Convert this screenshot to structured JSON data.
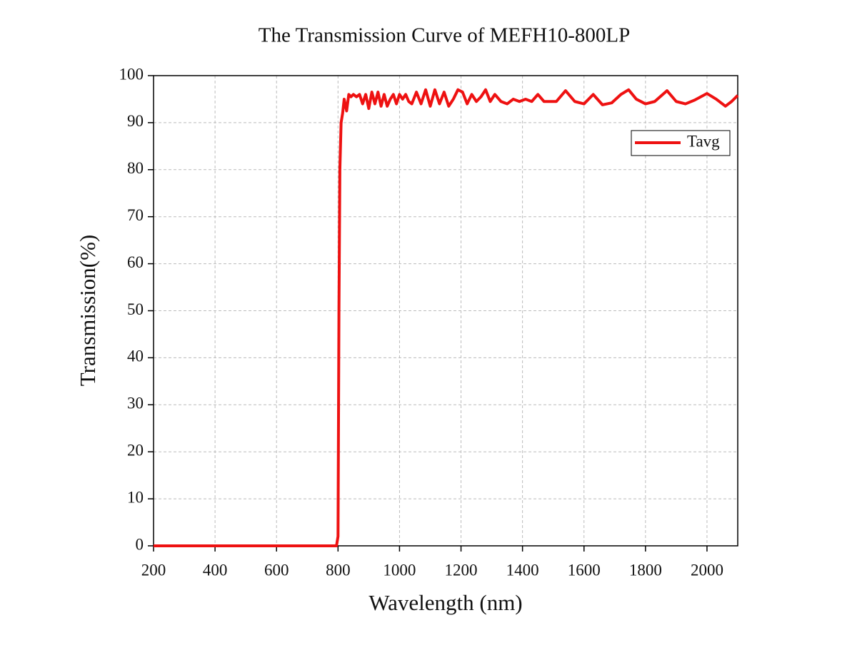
{
  "chart_data": {
    "type": "line",
    "title": "The Transmission Curve of MEFH10-800LP",
    "x_label": "Wavelength (nm)",
    "y_label": "Transmission(%)",
    "x": [
      200,
      795,
      800,
      803,
      806,
      810,
      815,
      820,
      828,
      835,
      842,
      850,
      860,
      870,
      880,
      890,
      900,
      910,
      920,
      930,
      940,
      950,
      960,
      970,
      980,
      990,
      1000,
      1010,
      1020,
      1030,
      1040,
      1055,
      1070,
      1085,
      1100,
      1115,
      1130,
      1145,
      1160,
      1175,
      1190,
      1205,
      1220,
      1235,
      1250,
      1265,
      1280,
      1295,
      1310,
      1330,
      1350,
      1370,
      1390,
      1410,
      1430,
      1450,
      1470,
      1490,
      1510,
      1540,
      1570,
      1600,
      1630,
      1660,
      1690,
      1720,
      1745,
      1770,
      1800,
      1830,
      1870,
      1900,
      1930,
      1960,
      2000,
      2030,
      2060,
      2080,
      2100
    ],
    "series": [
      {
        "name": "Tavg",
        "color": "#ee1111",
        "values": [
          0,
          0,
          2,
          50,
          80,
          90,
          92,
          95,
          92.5,
          96,
          95.5,
          96,
          95.5,
          96,
          94,
          96,
          93,
          96.5,
          94,
          96.5,
          93.5,
          96,
          93.5,
          95,
          96,
          94,
          96,
          95,
          96,
          94.5,
          94,
          96.5,
          94,
          97,
          93.5,
          97,
          94,
          96.5,
          93.5,
          95,
          97,
          96.5,
          94,
          96,
          94.5,
          95.5,
          97,
          94.5,
          96,
          94.5,
          94,
          95,
          94.5,
          95,
          94.5,
          96,
          94.5,
          94.5,
          94.5,
          96.8,
          94.5,
          94,
          96,
          93.8,
          94.2,
          96,
          97,
          95,
          94,
          94.5,
          96.8,
          94.5,
          94,
          94.8,
          96.2,
          95,
          93.5,
          94.5,
          95.8
        ]
      }
    ],
    "xlim": [
      200,
      2100
    ],
    "xticks": [
      200,
      400,
      600,
      800,
      1000,
      1200,
      1400,
      1600,
      1800,
      2000
    ],
    "ylim": [
      0,
      100
    ],
    "yticks": [
      0,
      10,
      20,
      30,
      40,
      50,
      60,
      70,
      80,
      90,
      100
    ],
    "grid": true,
    "legend": "upper right"
  }
}
